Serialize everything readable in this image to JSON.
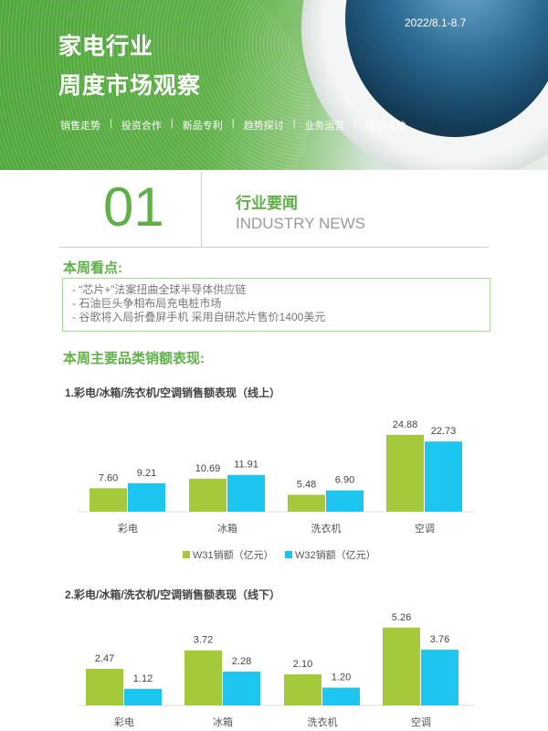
{
  "header": {
    "title_line1": "家电行业",
    "title_line2": "周度市场观察",
    "date": "2022/8.1-8.7",
    "nav": [
      "销售走势",
      "投资合作",
      "新品专利",
      "趋势探讨",
      "业务运营",
      "营销活动"
    ]
  },
  "section": {
    "number": "01",
    "title_cn": "行业要闻",
    "title_en": "INDUSTRY NEWS"
  },
  "highlights": {
    "heading": "本周看点:",
    "items": [
      "- “芯片+”法案扭曲全球半导体供应链",
      "- 石油巨头争相布局充电桩市场",
      "- 谷歌将入局折叠屏手机 采用自研芯片售价1400美元"
    ]
  },
  "sales_heading": "本周主要品类销额表现:",
  "colors": {
    "w31": "#a4c93a",
    "w32": "#1cc6ef",
    "accent": "#5fb048"
  },
  "chart_data": [
    {
      "type": "bar",
      "title": "1.彩电/冰箱/洗衣机/空调销售额表现（线上）",
      "categories": [
        "彩电",
        "冰箱",
        "洗衣机",
        "空调"
      ],
      "series": [
        {
          "name": "W31销额（亿元）",
          "values": [
            7.6,
            10.69,
            5.48,
            24.88
          ]
        },
        {
          "name": "W32销额（亿元）",
          "values": [
            9.21,
            11.91,
            6.9,
            22.73
          ]
        }
      ],
      "legend": "bottom"
    },
    {
      "type": "bar",
      "title": "2.彩电/冰箱/洗衣机/空调销售额表现（线下）",
      "categories": [
        "彩电",
        "冰箱",
        "洗衣机",
        "空调"
      ],
      "series": [
        {
          "values": [
            2.47,
            3.72,
            2.1,
            5.26
          ]
        },
        {
          "values": [
            1.12,
            2.28,
            1.2,
            3.76
          ]
        }
      ]
    }
  ]
}
